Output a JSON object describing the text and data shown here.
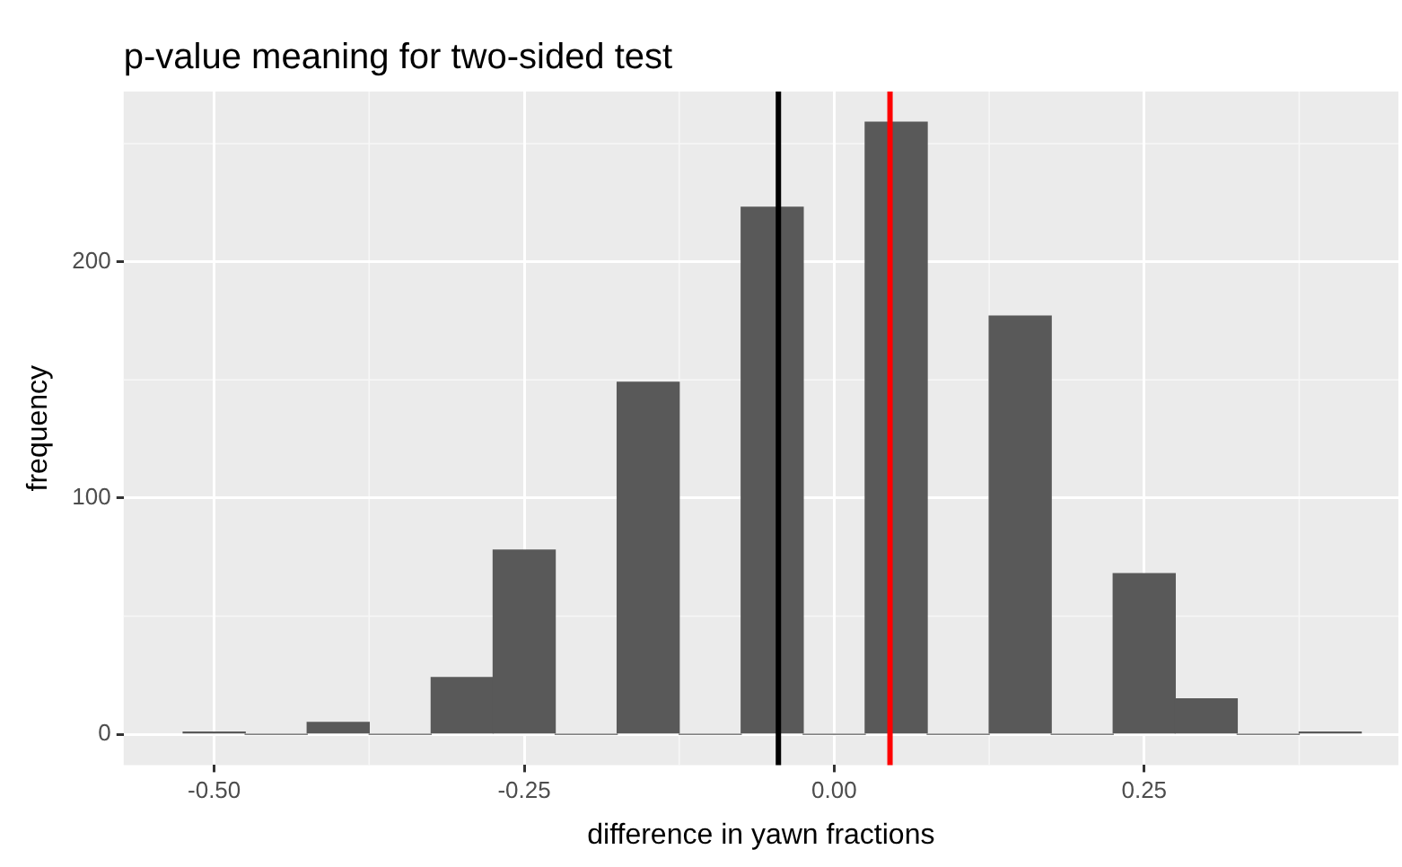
{
  "chart_data": {
    "type": "histogram",
    "title": "p-value meaning for two-sided test",
    "xlabel": "difference in yawn fractions",
    "ylabel": "frequency",
    "bins": [
      -0.525,
      -0.475,
      -0.425,
      -0.375,
      -0.325,
      -0.275,
      -0.225,
      -0.175,
      -0.125,
      -0.075,
      -0.025,
      0.025,
      0.075,
      0.125,
      0.175,
      0.225,
      0.275,
      0.325,
      0.375,
      0.425
    ],
    "values": [
      1,
      0,
      5,
      0,
      24,
      78,
      0,
      149,
      0,
      223,
      0,
      259,
      0,
      177,
      0,
      68,
      15,
      0,
      1
    ],
    "color": "#595959",
    "xlim": [
      -0.573,
      0.455
    ],
    "ylim": [
      -13,
      272
    ],
    "xticks": [
      {
        "value": -0.5,
        "label": "-0.50"
      },
      {
        "value": -0.25,
        "label": "-0.25"
      },
      {
        "value": 0,
        "label": "0.00"
      },
      {
        "value": 0.25,
        "label": "0.25"
      }
    ],
    "yticks": [
      0,
      100,
      200
    ],
    "ref_lines": [
      {
        "axis": "x",
        "value": -0.045,
        "color": "#000000"
      },
      {
        "axis": "x",
        "value": 0.045,
        "color": "#ff0000"
      }
    ],
    "grid": true,
    "legend": false
  }
}
